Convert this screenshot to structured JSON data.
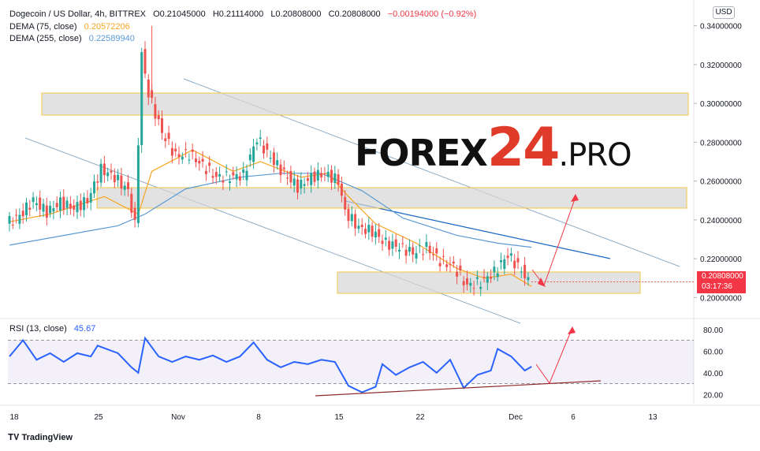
{
  "header": {
    "symbol": "Dogecoin / US Dollar, 4h, BITTREX",
    "open": "O0.21045000",
    "high": "H0.21114000",
    "low": "L0.20808000",
    "close": "C0.20808000",
    "change": "−0.00194000 (−0.92%)",
    "dema75_label": "DEMA (75, close)",
    "dema75_value": "0.20572206",
    "dema255_label": "DEMA (255, close)",
    "dema255_value": "0.22589940",
    "rsi_label": "RSI (13, close)",
    "rsi_value": "45.67",
    "currency": "USD"
  },
  "price_box": {
    "price": "0.20808000",
    "countdown": "03:17:36"
  },
  "watermark": {
    "part1": "FOREX",
    "part2": "24",
    "part3": ".PRO"
  },
  "footer": {
    "brand": "TradingView"
  },
  "colors": {
    "up": "#26a69a",
    "down": "#ef5350",
    "dema75": "#f7a623",
    "dema255": "#5b9bd5",
    "rsi": "#2962ff",
    "zone_border": "#f5c542",
    "channel": "#90aec6",
    "trend_blue": "#1565c0",
    "arrow": "#f23645",
    "support": "#8d2b2b"
  },
  "chart_data": {
    "type": "candlestick",
    "price_axis": {
      "labels": [
        "0.34000000",
        "0.32000000",
        "0.30000000",
        "0.28000000",
        "0.26000000",
        "0.24000000",
        "0.22000000",
        "0.20000000"
      ],
      "range": [
        0.19,
        0.35
      ]
    },
    "time_axis": {
      "labels": [
        "18",
        "25",
        "Nov",
        "8",
        "15",
        "22",
        "Dec",
        "6",
        "13"
      ]
    },
    "rsi_axis": {
      "labels": [
        "80.00",
        "60.00",
        "40.00",
        "20.00"
      ],
      "range": [
        10,
        90
      ],
      "bands": [
        30,
        70
      ]
    },
    "close_path": [
      {
        "t": 0,
        "v": 0.238
      },
      {
        "t": 2,
        "v": 0.242
      },
      {
        "t": 4,
        "v": 0.25
      },
      {
        "t": 6,
        "v": 0.244
      },
      {
        "t": 8,
        "v": 0.249
      },
      {
        "t": 10,
        "v": 0.246
      },
      {
        "t": 12,
        "v": 0.25
      },
      {
        "t": 14,
        "v": 0.266
      },
      {
        "t": 16,
        "v": 0.262
      },
      {
        "t": 18,
        "v": 0.255
      },
      {
        "t": 19,
        "v": 0.237
      },
      {
        "t": 20,
        "v": 0.325
      },
      {
        "t": 21,
        "v": 0.305
      },
      {
        "t": 23,
        "v": 0.285
      },
      {
        "t": 25,
        "v": 0.273
      },
      {
        "t": 27,
        "v": 0.274
      },
      {
        "t": 29,
        "v": 0.268
      },
      {
        "t": 31,
        "v": 0.262
      },
      {
        "t": 33,
        "v": 0.262
      },
      {
        "t": 35,
        "v": 0.263
      },
      {
        "t": 37,
        "v": 0.282
      },
      {
        "t": 39,
        "v": 0.272
      },
      {
        "t": 41,
        "v": 0.264
      },
      {
        "t": 43,
        "v": 0.257
      },
      {
        "t": 45,
        "v": 0.262
      },
      {
        "t": 47,
        "v": 0.264
      },
      {
        "t": 49,
        "v": 0.26
      },
      {
        "t": 50,
        "v": 0.244
      },
      {
        "t": 52,
        "v": 0.236
      },
      {
        "t": 54,
        "v": 0.234
      },
      {
        "t": 56,
        "v": 0.228
      },
      {
        "t": 58,
        "v": 0.226
      },
      {
        "t": 60,
        "v": 0.223
      },
      {
        "t": 62,
        "v": 0.226
      },
      {
        "t": 64,
        "v": 0.219
      },
      {
        "t": 66,
        "v": 0.216
      },
      {
        "t": 68,
        "v": 0.206
      },
      {
        "t": 70,
        "v": 0.208
      },
      {
        "t": 72,
        "v": 0.213
      },
      {
        "t": 74,
        "v": 0.222
      },
      {
        "t": 76,
        "v": 0.214
      },
      {
        "t": 77,
        "v": 0.208
      }
    ],
    "dema75_path": [
      {
        "t": 0,
        "v": 0.239
      },
      {
        "t": 6,
        "v": 0.243
      },
      {
        "t": 14,
        "v": 0.252
      },
      {
        "t": 19,
        "v": 0.243
      },
      {
        "t": 21,
        "v": 0.265
      },
      {
        "t": 27,
        "v": 0.276
      },
      {
        "t": 33,
        "v": 0.265
      },
      {
        "t": 37,
        "v": 0.27
      },
      {
        "t": 43,
        "v": 0.262
      },
      {
        "t": 47,
        "v": 0.264
      },
      {
        "t": 50,
        "v": 0.252
      },
      {
        "t": 54,
        "v": 0.238
      },
      {
        "t": 60,
        "v": 0.228
      },
      {
        "t": 66,
        "v": 0.215
      },
      {
        "t": 70,
        "v": 0.21
      },
      {
        "t": 74,
        "v": 0.212
      },
      {
        "t": 77,
        "v": 0.2057
      }
    ],
    "dema255_path": [
      {
        "t": 0,
        "v": 0.227
      },
      {
        "t": 8,
        "v": 0.232
      },
      {
        "t": 16,
        "v": 0.237
      },
      {
        "t": 20,
        "v": 0.243
      },
      {
        "t": 26,
        "v": 0.256
      },
      {
        "t": 34,
        "v": 0.262
      },
      {
        "t": 40,
        "v": 0.264
      },
      {
        "t": 46,
        "v": 0.264
      },
      {
        "t": 52,
        "v": 0.255
      },
      {
        "t": 58,
        "v": 0.241
      },
      {
        "t": 66,
        "v": 0.232
      },
      {
        "t": 72,
        "v": 0.228
      },
      {
        "t": 77,
        "v": 0.2259
      }
    ],
    "rsi_path": [
      {
        "t": 0,
        "v": 55
      },
      {
        "t": 2,
        "v": 70
      },
      {
        "t": 4,
        "v": 52
      },
      {
        "t": 6,
        "v": 58
      },
      {
        "t": 8,
        "v": 50
      },
      {
        "t": 10,
        "v": 58
      },
      {
        "t": 12,
        "v": 55
      },
      {
        "t": 13,
        "v": 65
      },
      {
        "t": 16,
        "v": 58
      },
      {
        "t": 18,
        "v": 45
      },
      {
        "t": 19,
        "v": 40
      },
      {
        "t": 20,
        "v": 72
      },
      {
        "t": 22,
        "v": 55
      },
      {
        "t": 24,
        "v": 50
      },
      {
        "t": 26,
        "v": 55
      },
      {
        "t": 28,
        "v": 52
      },
      {
        "t": 30,
        "v": 56
      },
      {
        "t": 32,
        "v": 50
      },
      {
        "t": 34,
        "v": 55
      },
      {
        "t": 36,
        "v": 68
      },
      {
        "t": 38,
        "v": 52
      },
      {
        "t": 40,
        "v": 45
      },
      {
        "t": 42,
        "v": 50
      },
      {
        "t": 44,
        "v": 48
      },
      {
        "t": 46,
        "v": 52
      },
      {
        "t": 48,
        "v": 50
      },
      {
        "t": 50,
        "v": 28
      },
      {
        "t": 52,
        "v": 22
      },
      {
        "t": 54,
        "v": 27
      },
      {
        "t": 55,
        "v": 48
      },
      {
        "t": 57,
        "v": 38
      },
      {
        "t": 59,
        "v": 45
      },
      {
        "t": 61,
        "v": 50
      },
      {
        "t": 63,
        "v": 40
      },
      {
        "t": 65,
        "v": 52
      },
      {
        "t": 67,
        "v": 26
      },
      {
        "t": 69,
        "v": 38
      },
      {
        "t": 71,
        "v": 42
      },
      {
        "t": 72,
        "v": 62
      },
      {
        "t": 74,
        "v": 55
      },
      {
        "t": 76,
        "v": 42
      },
      {
        "t": 77,
        "v": 45.67
      }
    ]
  }
}
